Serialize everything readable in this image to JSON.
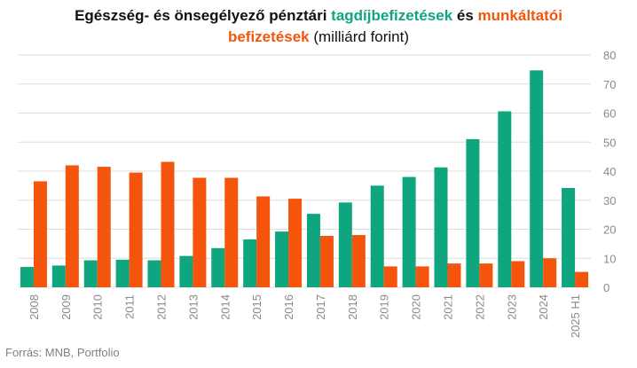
{
  "title": {
    "part1": "Egészség- és önsegélyező pénztári ",
    "green": "tagdíjbefizetések",
    "part2": " és ",
    "orange": "munkáltatói",
    "orange2": "befizetések",
    "unit": " (milliárd forint)"
  },
  "source": "Forrás: MNB, Portfolio",
  "colors": {
    "tagdij": "#0fa57f",
    "munkaltatoi": "#f4540c",
    "grid": "#dedede",
    "text": "#8a8a8a"
  },
  "chart_data": {
    "type": "bar",
    "categories": [
      "2008",
      "2009",
      "2010",
      "2011",
      "2012",
      "2013",
      "2014",
      "2015",
      "2016",
      "2017",
      "2018",
      "2019",
      "2020",
      "2021",
      "2022",
      "2023",
      "2024",
      "2025 H1"
    ],
    "series": [
      {
        "name": "tagdíjbefizetések",
        "values": [
          7,
          7.5,
          9.3,
          9.5,
          9.3,
          10.8,
          13.5,
          16.5,
          19.2,
          25.3,
          29.2,
          35,
          38,
          41.3,
          51,
          60.6,
          74.7,
          34.2
        ]
      },
      {
        "name": "munkáltatói befizetések",
        "values": [
          36.5,
          42,
          41.5,
          39.5,
          43.2,
          37.7,
          37.7,
          31.3,
          30.5,
          17.7,
          18,
          7.2,
          7.2,
          8.2,
          8.2,
          9,
          10,
          5.3
        ]
      }
    ],
    "ylim": [
      0,
      80
    ],
    "yticks": [
      0,
      10,
      20,
      30,
      40,
      50,
      60,
      70,
      80
    ],
    "y_axis_side": "right",
    "grid": true,
    "xlabel": "",
    "ylabel": ""
  }
}
